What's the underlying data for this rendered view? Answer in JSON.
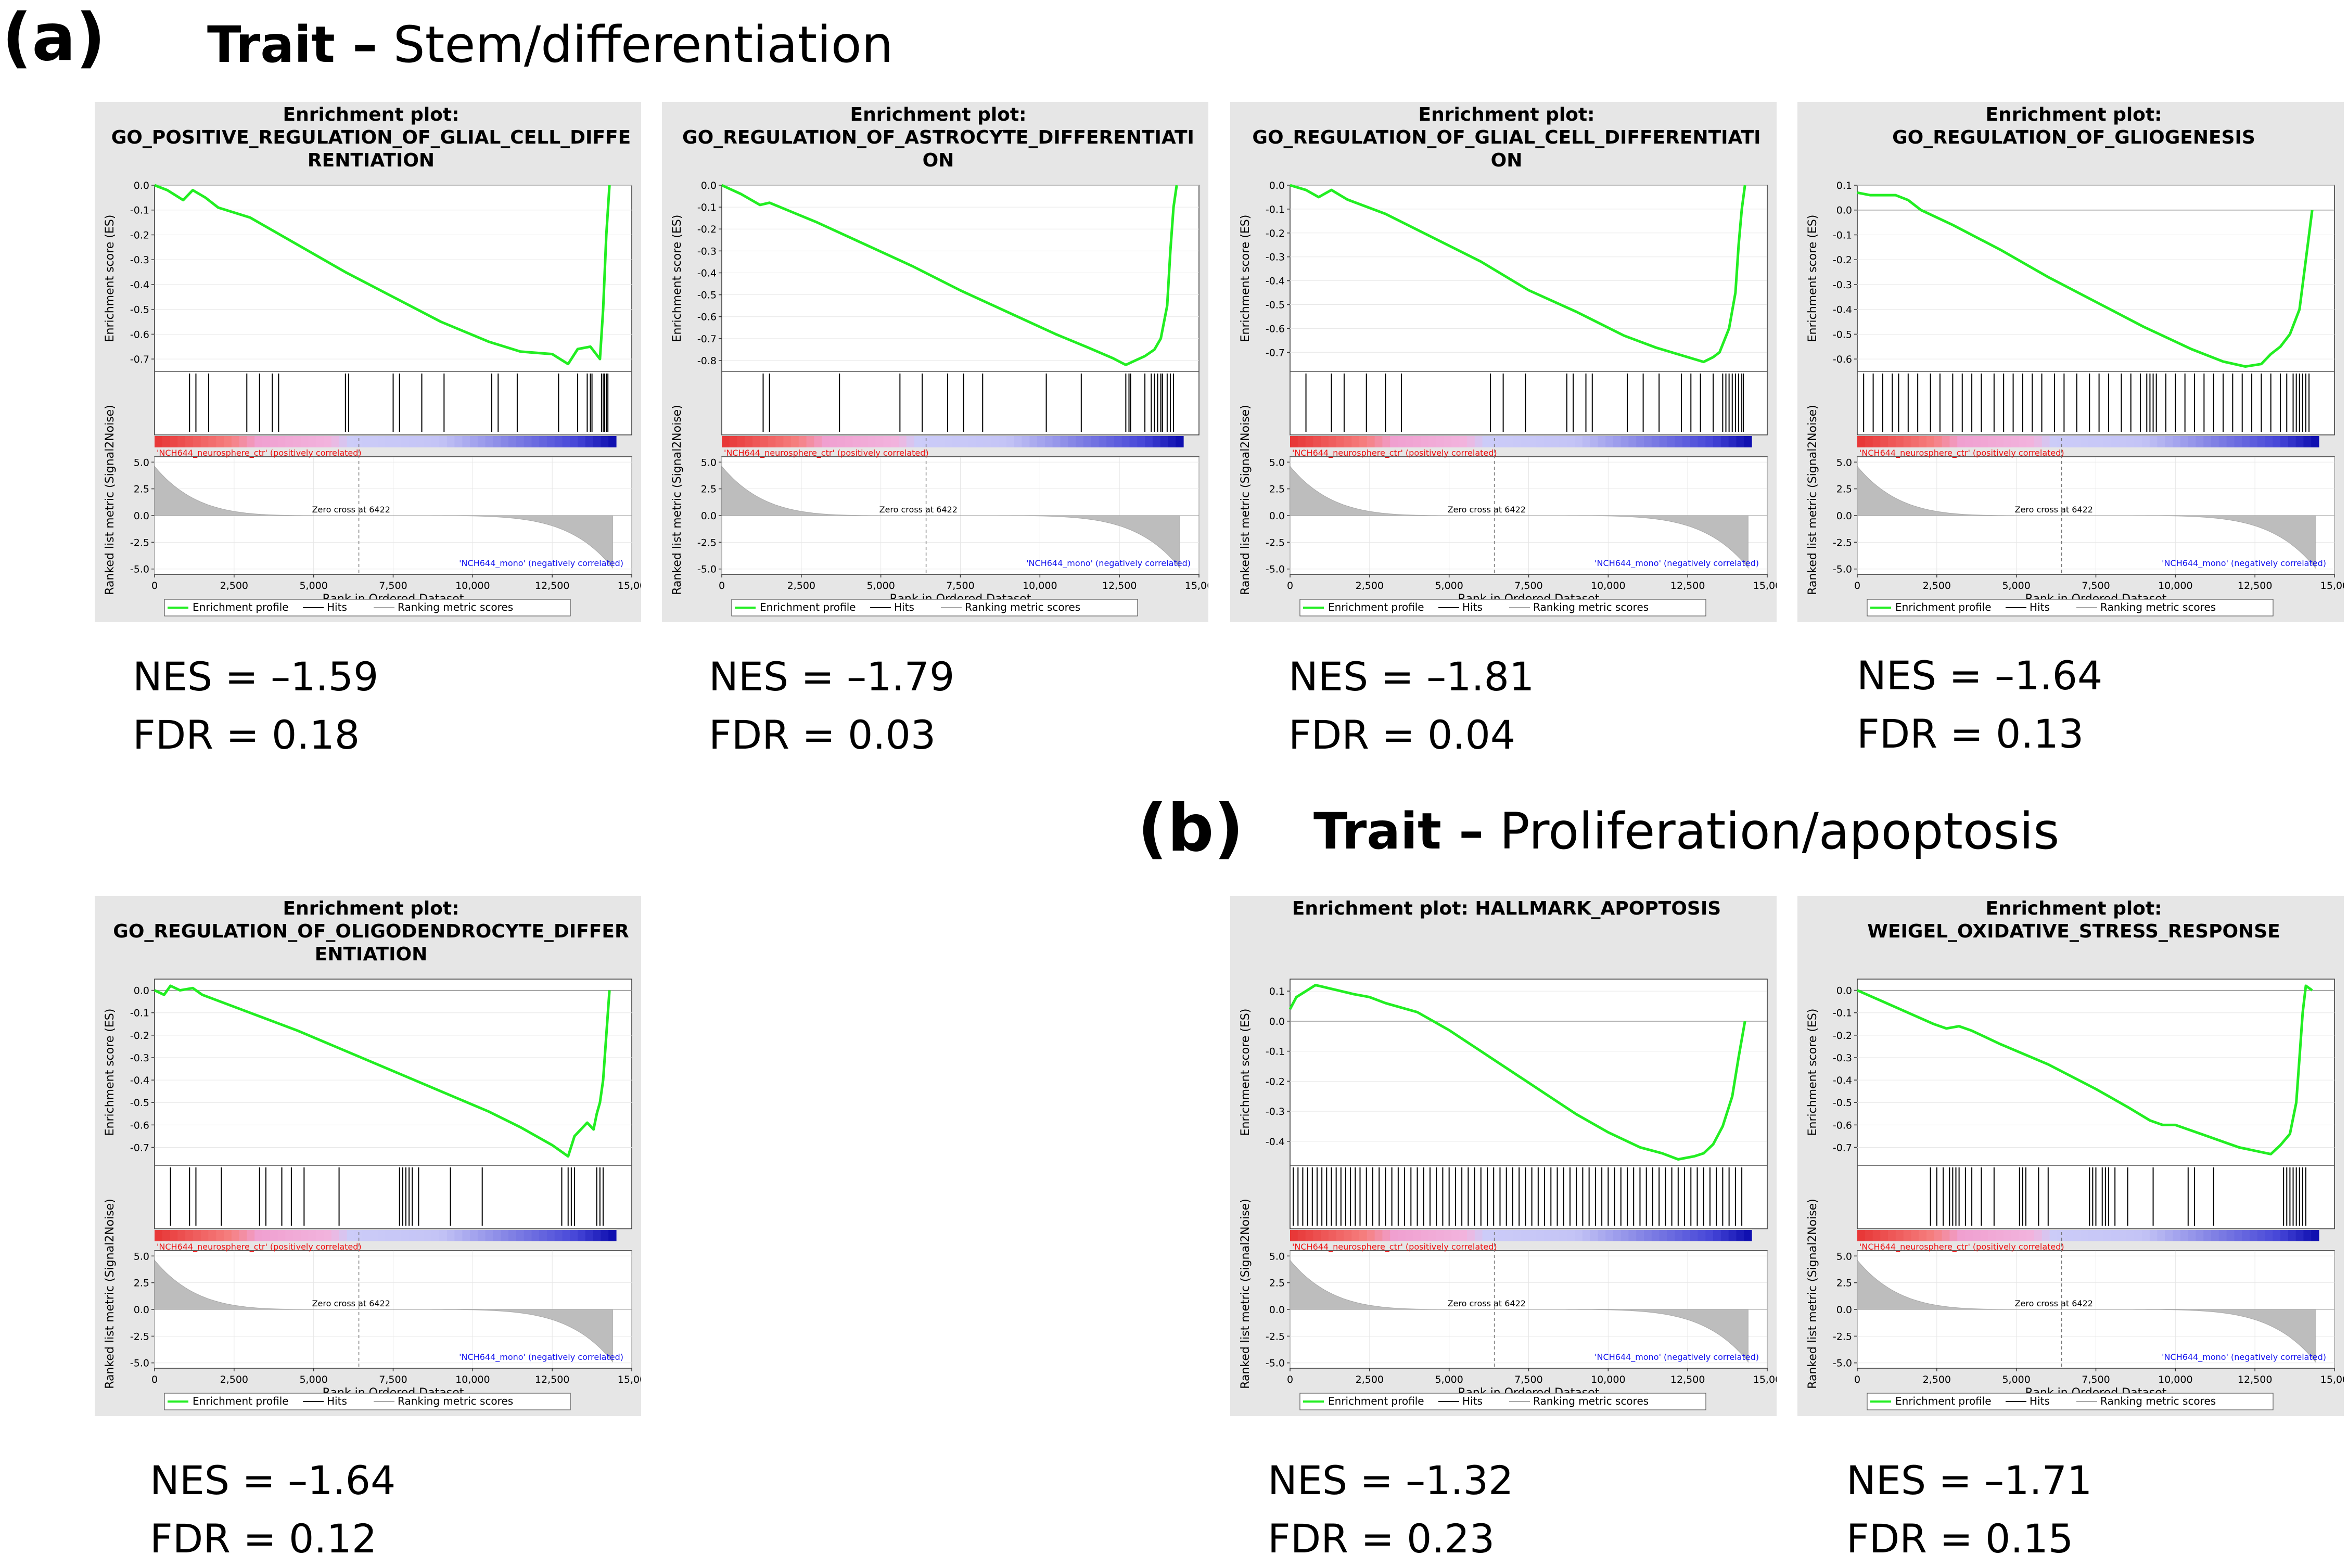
{
  "sections": [
    {
      "letter": "(a)",
      "trait_label": "Trait –",
      "trait_name": "Stem/differentiation"
    },
    {
      "letter": "(b)",
      "trait_label": "Trait –",
      "trait_name": "Proliferation/apoptosis"
    }
  ],
  "colors": {
    "es_line": "#22ee22",
    "panel_bg": "#e6e6e6",
    "hit": "#000000",
    "metric_fill": "#bdbdbd",
    "pos_label": "#ee1111",
    "neg_label": "#1111ee"
  },
  "common": {
    "es_axis_label": "Enrichment score (ES)",
    "metric_axis_label": "Ranked list metric (Signal2Noise)",
    "x_axis_label": "Rank in Ordered Dataset",
    "x_ticks": [
      "0",
      "2,500",
      "5,000",
      "7,500",
      "10,000",
      "12,500",
      "15,00"
    ],
    "x_tick_values": [
      0,
      2500,
      5000,
      7500,
      10000,
      12500,
      15000
    ],
    "metric_ticks": [
      "5.0",
      "2.5",
      "0.0",
      "-2.5",
      "-5.0"
    ],
    "metric_tick_values": [
      5,
      2.5,
      0,
      -2.5,
      -5
    ],
    "pos_label": "'NCH644_neurosphere_ctr' (positively correlated)",
    "neg_label": "'NCH644_mono' (negatively correlated)",
    "zero_cross": "Zero cross at 6422",
    "zero_cross_rank": 6422,
    "n_genes": 14400,
    "legend": [
      "Enrichment profile",
      "Hits",
      "Ranking metric scores"
    ]
  },
  "chart_data": [
    {
      "type": "line",
      "section": "a",
      "title": "Enrichment plot:",
      "title_lines": [
        "Enrichment plot:",
        "GO_POSITIVE_REGULATION_OF_GLIAL_CELL_DIFFE",
        "RENTIATION"
      ],
      "x": [
        0,
        400,
        900,
        1200,
        1600,
        2000,
        3000,
        4500,
        6000,
        7500,
        9000,
        10500,
        11500,
        12500,
        13000,
        13300,
        13700,
        14000,
        14100,
        14200,
        14300
      ],
      "y": [
        0.0,
        -0.02,
        -0.06,
        -0.02,
        -0.05,
        -0.09,
        -0.13,
        -0.24,
        -0.35,
        -0.45,
        -0.55,
        -0.63,
        -0.67,
        -0.68,
        -0.72,
        -0.66,
        -0.65,
        -0.7,
        -0.5,
        -0.2,
        0.0
      ],
      "hits": [
        1100,
        1300,
        1700,
        2900,
        3300,
        3700,
        3900,
        6000,
        6100,
        7500,
        7700,
        8400,
        9100,
        10600,
        10800,
        11400,
        12700,
        13300,
        13600,
        13700,
        13750,
        14050,
        14100,
        14150,
        14200,
        14250
      ],
      "ylim": [
        -0.75,
        0.0
      ],
      "yticks": [
        0.0,
        -0.1,
        -0.2,
        -0.3,
        -0.4,
        -0.5,
        -0.6,
        -0.7
      ],
      "ytick_labels": [
        "0.0",
        "-0.1",
        "-0.2",
        "-0.3",
        "-0.4",
        "-0.5",
        "-0.6",
        "-0.7"
      ],
      "xlabel": "Rank in Ordered Dataset",
      "ylabel": "Enrichment score (ES)",
      "nes": "NES = –1.59",
      "fdr": "FDR = 0.18"
    },
    {
      "type": "line",
      "section": "a",
      "title": "Enrichment plot:",
      "title_lines": [
        "Enrichment plot:",
        "GO_REGULATION_OF_ASTROCYTE_DIFFERENTIATI",
        "ON"
      ],
      "x": [
        0,
        600,
        1200,
        1500,
        3000,
        4500,
        6000,
        7500,
        9000,
        10500,
        11500,
        12300,
        12700,
        13000,
        13300,
        13600,
        13800,
        14000,
        14100,
        14200,
        14300
      ],
      "y": [
        0.0,
        -0.04,
        -0.09,
        -0.08,
        -0.17,
        -0.27,
        -0.37,
        -0.48,
        -0.58,
        -0.68,
        -0.74,
        -0.79,
        -0.82,
        -0.8,
        -0.78,
        -0.75,
        -0.7,
        -0.55,
        -0.3,
        -0.1,
        0.0
      ],
      "hits": [
        1300,
        1500,
        3700,
        5600,
        6300,
        7100,
        7600,
        8200,
        10200,
        11300,
        12700,
        12800,
        12850,
        13300,
        13500,
        13600,
        13700,
        13800,
        13850,
        14000,
        14100,
        14200
      ],
      "ylim": [
        -0.85,
        0.0
      ],
      "yticks": [
        0.0,
        -0.1,
        -0.2,
        -0.3,
        -0.4,
        -0.5,
        -0.6,
        -0.7,
        -0.8
      ],
      "ytick_labels": [
        "0.0",
        "-0.1",
        "-0.2",
        "-0.3",
        "-0.4",
        "-0.5",
        "-0.6",
        "-0.7",
        "-0.8"
      ],
      "xlabel": "Rank in Ordered Dataset",
      "ylabel": "Enrichment score (ES)",
      "nes": "NES = –1.79",
      "fdr": "FDR = 0.03"
    },
    {
      "type": "line",
      "section": "a",
      "title": "Enrichment plot:",
      "title_lines": [
        "Enrichment plot:",
        "GO_REGULATION_OF_GLIAL_CELL_DIFFERENTIATI",
        "ON"
      ],
      "x": [
        0,
        500,
        900,
        1300,
        1800,
        3000,
        4500,
        6000,
        7500,
        9000,
        10500,
        11500,
        12500,
        13000,
        13300,
        13500,
        13800,
        14000,
        14100,
        14200,
        14300
      ],
      "y": [
        0.0,
        -0.02,
        -0.05,
        -0.02,
        -0.06,
        -0.12,
        -0.22,
        -0.32,
        -0.44,
        -0.53,
        -0.63,
        -0.68,
        -0.72,
        -0.74,
        -0.72,
        -0.7,
        -0.6,
        -0.45,
        -0.25,
        -0.1,
        0.0
      ],
      "hits": [
        500,
        1300,
        1700,
        2400,
        3000,
        3500,
        6300,
        6700,
        7400,
        8700,
        8900,
        9300,
        9500,
        10600,
        11100,
        11600,
        12300,
        12600,
        12900,
        13300,
        13600,
        13700,
        13800,
        13900,
        14000,
        14100,
        14200,
        14250
      ],
      "ylim": [
        -0.78,
        0.0
      ],
      "yticks": [
        0.0,
        -0.1,
        -0.2,
        -0.3,
        -0.4,
        -0.5,
        -0.6,
        -0.7
      ],
      "ytick_labels": [
        "0.0",
        "-0.1",
        "-0.2",
        "-0.3",
        "-0.4",
        "-0.5",
        "-0.6",
        "-0.7"
      ],
      "xlabel": "Rank in Ordered Dataset",
      "ylabel": "Enrichment score (ES)",
      "nes": "NES = –1.81",
      "fdr": "FDR = 0.04"
    },
    {
      "type": "line",
      "section": "a",
      "title": "Enrichment plot:",
      "title_lines": [
        "Enrichment plot:",
        "GO_REGULATION_OF_GLIOGENESIS"
      ],
      "x": [
        0,
        400,
        800,
        1200,
        1600,
        2000,
        3000,
        4500,
        6000,
        7500,
        9000,
        10500,
        11500,
        12200,
        12700,
        13000,
        13300,
        13600,
        13900,
        14100,
        14300
      ],
      "y": [
        0.07,
        0.06,
        0.06,
        0.06,
        0.04,
        0.0,
        -0.06,
        -0.16,
        -0.27,
        -0.37,
        -0.47,
        -0.56,
        -0.61,
        -0.63,
        -0.62,
        -0.58,
        -0.55,
        -0.5,
        -0.4,
        -0.2,
        0.0
      ],
      "hits": [
        200,
        500,
        800,
        1100,
        1300,
        1600,
        1900,
        2300,
        2600,
        3000,
        3300,
        3600,
        3900,
        4300,
        4600,
        4900,
        5200,
        5500,
        5800,
        6200,
        6500,
        6900,
        7300,
        7600,
        7900,
        8300,
        8600,
        8900,
        9100,
        9200,
        9300,
        9400,
        9700,
        10000,
        10300,
        10600,
        10900,
        11200,
        11500,
        11800,
        12100,
        12400,
        12700,
        13000,
        13300,
        13500,
        13700,
        13800,
        13900,
        14000,
        14100,
        14200
      ],
      "ylim": [
        -0.65,
        0.1
      ],
      "yticks": [
        0.1,
        0.0,
        -0.1,
        -0.2,
        -0.3,
        -0.4,
        -0.5,
        -0.6
      ],
      "ytick_labels": [
        "0.1",
        "0.0",
        "-0.1",
        "-0.2",
        "-0.3",
        "-0.4",
        "-0.5",
        "-0.6"
      ],
      "xlabel": "Rank in Ordered Dataset",
      "ylabel": "Enrichment score (ES)",
      "nes": "NES = –1.64",
      "fdr": "FDR = 0.13"
    },
    {
      "type": "line",
      "section": "a",
      "title": "Enrichment plot:",
      "title_lines": [
        "Enrichment plot:",
        "GO_REGULATION_OF_OLIGODENDROCYTE_DIFFER",
        "ENTIATION"
      ],
      "x": [
        0,
        300,
        500,
        800,
        1200,
        1500,
        3000,
        4500,
        6000,
        7500,
        9000,
        10500,
        11500,
        12500,
        13000,
        13200,
        13400,
        13600,
        13800,
        13900,
        14000,
        14100,
        14200,
        14300
      ],
      "y": [
        0.0,
        -0.02,
        0.02,
        0.0,
        0.01,
        -0.02,
        -0.1,
        -0.18,
        -0.27,
        -0.36,
        -0.45,
        -0.54,
        -0.61,
        -0.69,
        -0.74,
        -0.65,
        -0.62,
        -0.59,
        -0.62,
        -0.55,
        -0.5,
        -0.4,
        -0.2,
        0.0
      ],
      "hits": [
        500,
        1100,
        1300,
        2100,
        3300,
        3500,
        4000,
        4300,
        4700,
        5800,
        7700,
        7800,
        7900,
        8000,
        8100,
        8300,
        9300,
        10300,
        12800,
        13000,
        13100,
        13200,
        13900,
        14000,
        14100
      ],
      "ylim": [
        -0.78,
        0.05
      ],
      "yticks": [
        0.0,
        -0.1,
        -0.2,
        -0.3,
        -0.4,
        -0.5,
        -0.6,
        -0.7
      ],
      "ytick_labels": [
        "0.0",
        "-0.1",
        "-0.2",
        "-0.3",
        "-0.4",
        "-0.5",
        "-0.6",
        "-0.7"
      ],
      "xlabel": "Rank in Ordered Dataset",
      "ylabel": "Enrichment score (ES)",
      "nes": "NES = –1.64",
      "fdr": "FDR = 0.12"
    },
    {
      "type": "line",
      "section": "b",
      "title": "Enrichment plot: HALLMARK_APOPTOSIS",
      "title_lines": [
        "Enrichment plot: HALLMARK_APOPTOSIS"
      ],
      "x": [
        0,
        200,
        500,
        800,
        1200,
        1600,
        2000,
        2500,
        3000,
        4000,
        5000,
        6000,
        7000,
        8000,
        9000,
        10000,
        11000,
        11700,
        12200,
        12700,
        13000,
        13300,
        13600,
        13900,
        14100,
        14300
      ],
      "y": [
        0.04,
        0.08,
        0.1,
        0.12,
        0.11,
        0.1,
        0.09,
        0.08,
        0.06,
        0.03,
        -0.03,
        -0.1,
        -0.17,
        -0.24,
        -0.31,
        -0.37,
        -0.42,
        -0.44,
        -0.46,
        -0.45,
        -0.44,
        -0.41,
        -0.35,
        -0.25,
        -0.12,
        0.0
      ],
      "hits": [
        100,
        250,
        400,
        550,
        700,
        850,
        1000,
        1150,
        1300,
        1450,
        1600,
        1750,
        1900,
        2050,
        2200,
        2400,
        2600,
        2800,
        3000,
        3200,
        3400,
        3600,
        3800,
        4000,
        4200,
        4400,
        4600,
        4800,
        5000,
        5200,
        5400,
        5600,
        5800,
        6000,
        6200,
        6400,
        6600,
        6800,
        7000,
        7200,
        7400,
        7600,
        7800,
        8000,
        8200,
        8400,
        8600,
        8800,
        9000,
        9200,
        9400,
        9600,
        9800,
        10000,
        10200,
        10400,
        10600,
        10800,
        11000,
        11200,
        11400,
        11600,
        11800,
        12000,
        12200,
        12400,
        12600,
        12800,
        13000,
        13200,
        13400,
        13600,
        13800,
        14000,
        14200
      ],
      "ylim": [
        -0.48,
        0.14
      ],
      "yticks": [
        0.1,
        0.0,
        -0.1,
        -0.2,
        -0.3,
        -0.4
      ],
      "ytick_labels": [
        "0.1",
        "0.0",
        "-0.1",
        "-0.2",
        "-0.3",
        "-0.4"
      ],
      "xlabel": "Rank in Ordered Dataset",
      "ylabel": "Enrichment score (ES)",
      "nes": "NES = –1.32",
      "fdr": "FDR = 0.23"
    },
    {
      "type": "line",
      "section": "b",
      "title": "Enrichment plot:",
      "title_lines": [
        "Enrichment plot:",
        "WEIGEL_OXIDATIVE_STRESS_RESPONSE"
      ],
      "x": [
        0,
        800,
        1600,
        2400,
        2800,
        3200,
        3600,
        4500,
        6000,
        7500,
        8500,
        9200,
        9600,
        10000,
        11000,
        12000,
        13000,
        13300,
        13600,
        13800,
        13900,
        14000,
        14100,
        14300
      ],
      "y": [
        0.0,
        -0.05,
        -0.1,
        -0.15,
        -0.17,
        -0.16,
        -0.18,
        -0.24,
        -0.33,
        -0.44,
        -0.52,
        -0.58,
        -0.6,
        -0.6,
        -0.65,
        -0.7,
        -0.73,
        -0.69,
        -0.64,
        -0.5,
        -0.3,
        -0.1,
        0.02,
        0.0
      ],
      "hits": [
        2300,
        2500,
        2700,
        2900,
        3000,
        3100,
        3200,
        3400,
        3600,
        3900,
        4300,
        5100,
        5200,
        5300,
        5700,
        6000,
        7300,
        7400,
        7500,
        7700,
        7800,
        7900,
        8100,
        8500,
        9300,
        10400,
        10600,
        11200,
        13400,
        13500,
        13600,
        13700,
        13800,
        13900,
        14000,
        14100
      ],
      "ylim": [
        -0.78,
        0.05
      ],
      "yticks": [
        0.0,
        -0.1,
        -0.2,
        -0.3,
        -0.4,
        -0.5,
        -0.6,
        -0.7
      ],
      "ytick_labels": [
        "0.0",
        "-0.1",
        "-0.2",
        "-0.3",
        "-0.4",
        "-0.5",
        "-0.6",
        "-0.7"
      ],
      "xlabel": "Rank in Ordered Dataset",
      "ylabel": "Enrichment score (ES)",
      "nes": "NES = –1.71",
      "fdr": "FDR = 0.15"
    }
  ]
}
